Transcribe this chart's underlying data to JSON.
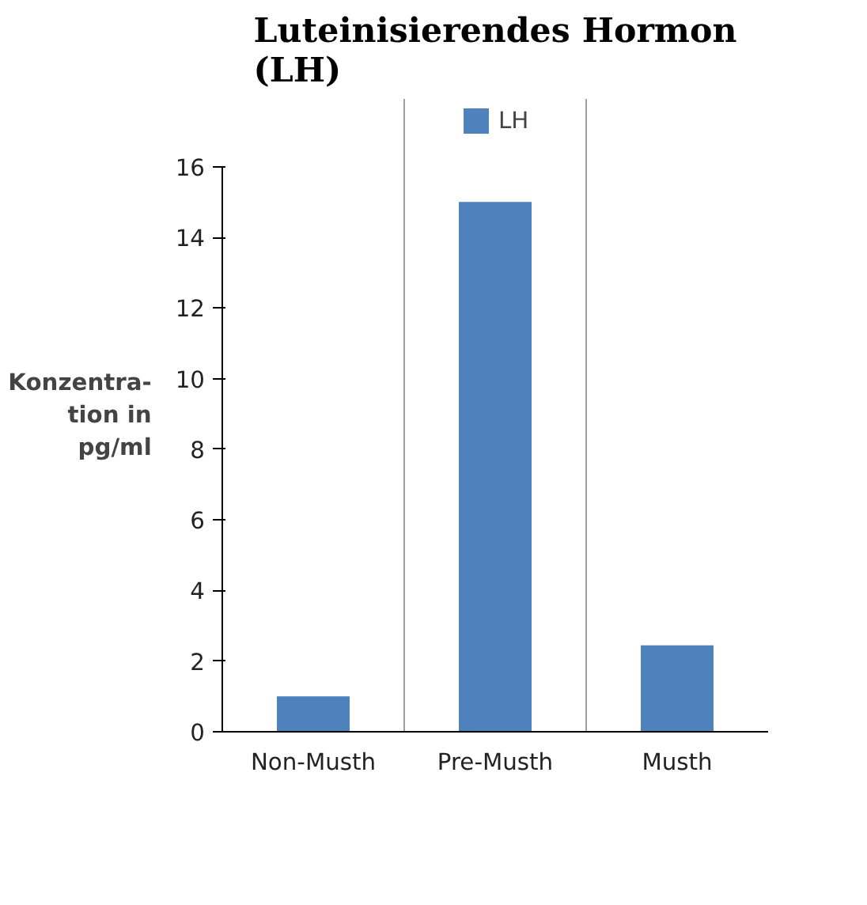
{
  "chart_data": {
    "type": "bar",
    "title": "Luteinisierendes Hormon\n(LH)",
    "ylabel": "Konzentra-\ntion in\npg/ml",
    "categories": [
      "Non-Musth",
      "Pre-Musth",
      "Musth"
    ],
    "series": [
      {
        "name": "LH",
        "color": "#4f81bd",
        "values": [
          1,
          15,
          2.45
        ]
      }
    ],
    "ylim": [
      0,
      16
    ],
    "yticks": [
      0,
      2,
      4,
      6,
      8,
      10,
      12,
      14,
      16
    ],
    "grid": "x",
    "legend": "top"
  }
}
